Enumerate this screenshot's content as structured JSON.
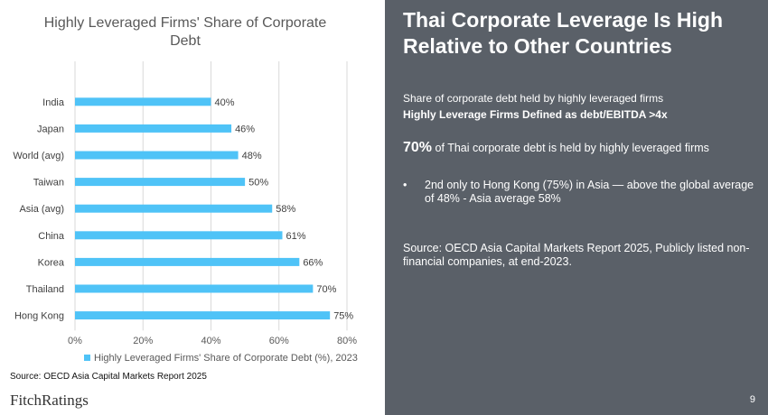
{
  "chart_data": {
    "type": "bar",
    "orientation": "horizontal",
    "title": "Highly Leveraged Firms' Share of Corporate Debt",
    "categories": [
      "India",
      "Japan",
      "World (avg)",
      "Taiwan",
      "Asia (avg)",
      "China",
      "Korea",
      "Thailand",
      "Hong Kong"
    ],
    "series": [
      {
        "name": "Highly Leveraged Firms' Share of Corporate Debt (%), 2023",
        "values": [
          40,
          46,
          48,
          50,
          58,
          61,
          66,
          70,
          75
        ],
        "labels": [
          "40%",
          "46%",
          "48%",
          "50%",
          "58%",
          "61%",
          "66%",
          "70%",
          "75%"
        ]
      }
    ],
    "xlim": [
      0,
      80
    ],
    "x_ticks": [
      "0%",
      "20%",
      "40%",
      "60%",
      "80%"
    ],
    "x_tick_values": [
      0,
      20,
      40,
      60,
      80
    ],
    "grid": "vertical",
    "legend_position": "bottom",
    "bar_color": "#4fc3f7"
  },
  "source_note": "Source: OECD Asia Capital Markets Report 2025",
  "logo": "FitchRatings",
  "panel": {
    "title": "Thai Corporate Leverage Is High Relative to Other Countries",
    "subtitle_1": "Share of corporate debt held by highly leveraged firms",
    "subtitle_2": "Highly Leverage Firms Defined as debt/EBITDA >4x",
    "highlight_number": "70%",
    "highlight_text": "of Thai corporate debt is held by highly leveraged firms",
    "bullet_mark": "•",
    "bullet": "2nd only to Hong Kong (75%) in Asia — above the global average of 48% - Asia average 58%",
    "source": "Source: OECD Asia Capital Markets Report 2025, Publicly listed non-financial companies, at end-2023.",
    "background": "#5a6068"
  },
  "page_number": "9"
}
